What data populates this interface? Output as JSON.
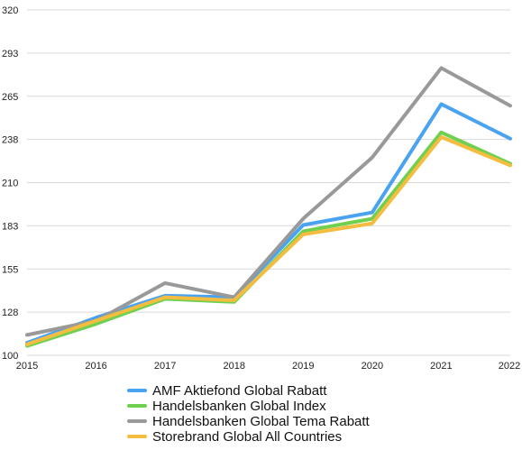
{
  "chart_data": {
    "type": "line",
    "x": [
      "2015",
      "2016",
      "2017",
      "2018",
      "2019",
      "2020",
      "2021",
      "2022"
    ],
    "ylim": [
      100,
      320
    ],
    "yticks": [
      "100",
      "128",
      "155",
      "183",
      "210",
      "238",
      "265",
      "293",
      "320"
    ],
    "grid": "horizontal",
    "legend_position": "bottom-center",
    "series": [
      {
        "name": "AMF Aktiefond Global Rabatt",
        "color": "#4aa3f0",
        "values": [
          108,
          124,
          138,
          137,
          183,
          191,
          260,
          238
        ]
      },
      {
        "name": "Handelsbanken Global Index",
        "color": "#6fd04f",
        "values": [
          106,
          120,
          136,
          134,
          179,
          187,
          242,
          222
        ]
      },
      {
        "name": "Handelsbanken Global Tema Rabatt",
        "color": "#999999",
        "values": [
          113,
          122,
          146,
          137,
          187,
          226,
          283,
          259
        ]
      },
      {
        "name": "Storebrand Global All Countries",
        "color": "#f5bd3f",
        "values": [
          107,
          122,
          137,
          135,
          177,
          184,
          239,
          221
        ]
      }
    ]
  }
}
